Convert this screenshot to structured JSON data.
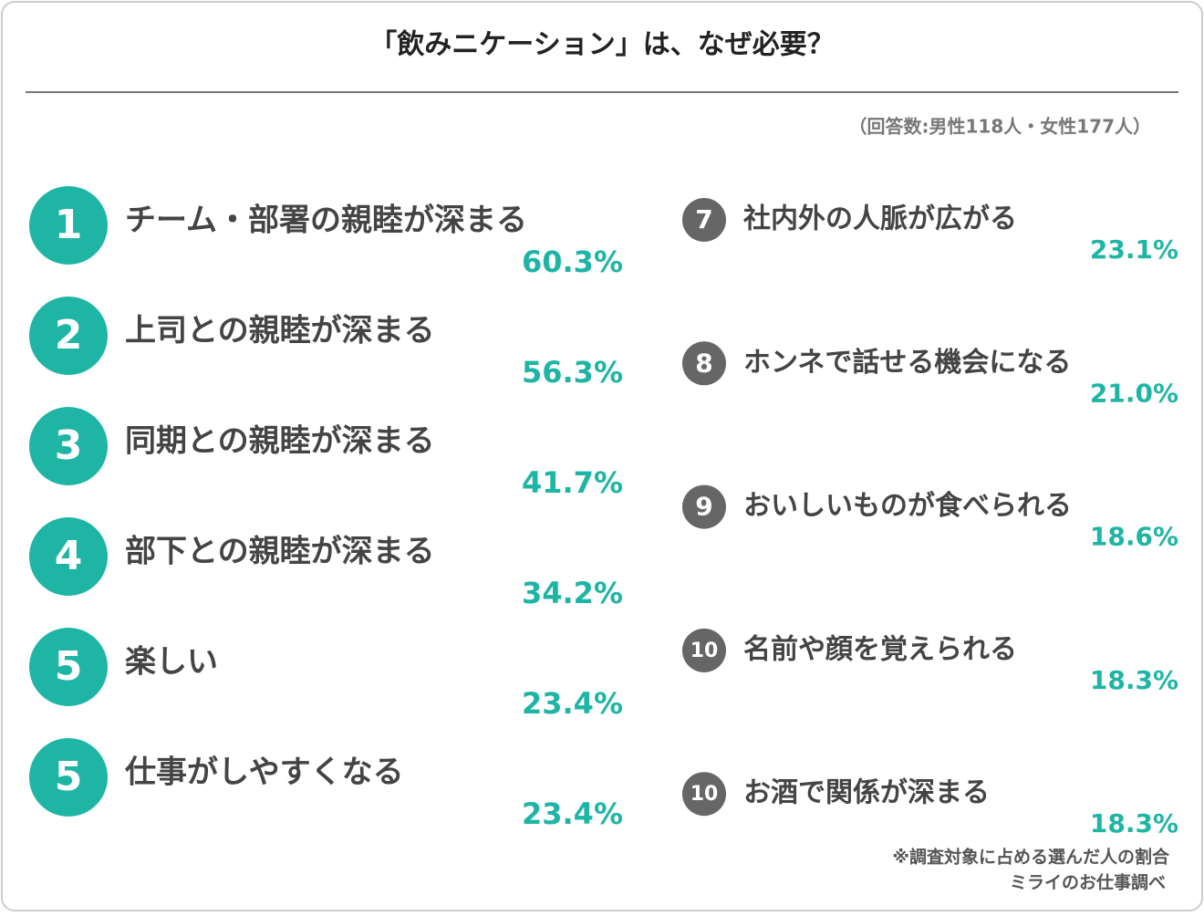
{
  "header": {
    "title": "「飲みニケーション」は、なぜ必要？",
    "subtitle": "（回答数:男性118人・女性177人）"
  },
  "left": [
    {
      "rank": "1",
      "text": "チーム・部署の親睦が深まる",
      "percent": "60.3%"
    },
    {
      "rank": "2",
      "text": "上司との親睦が深まる",
      "percent": "56.3%"
    },
    {
      "rank": "3",
      "text": "同期との親睦が深まる",
      "percent": "41.7%"
    },
    {
      "rank": "4",
      "text": "部下との親睦が深まる",
      "percent": "34.2%"
    },
    {
      "rank": "5",
      "text": "楽しい",
      "percent": "23.4%"
    },
    {
      "rank": "5",
      "text": "仕事がしやすくなる",
      "percent": "23.4%"
    }
  ],
  "right": [
    {
      "rank": "7",
      "text": "社内外の人脈が広がる",
      "percent": "23.1%"
    },
    {
      "rank": "8",
      "text": "ホンネで話せる機会になる",
      "percent": "21.0%"
    },
    {
      "rank": "9",
      "text": "おいしいものが食べられる",
      "percent": "18.6%"
    },
    {
      "rank": "10",
      "text": "名前や顔を覚えられる",
      "percent": "18.3%"
    },
    {
      "rank": "10",
      "text": "お酒で関係が深まる",
      "percent": "18.3%"
    }
  ],
  "footer": {
    "note": "※調査対象に占める選んだ人の割合",
    "source": "ミライのお仕事調べ"
  }
}
